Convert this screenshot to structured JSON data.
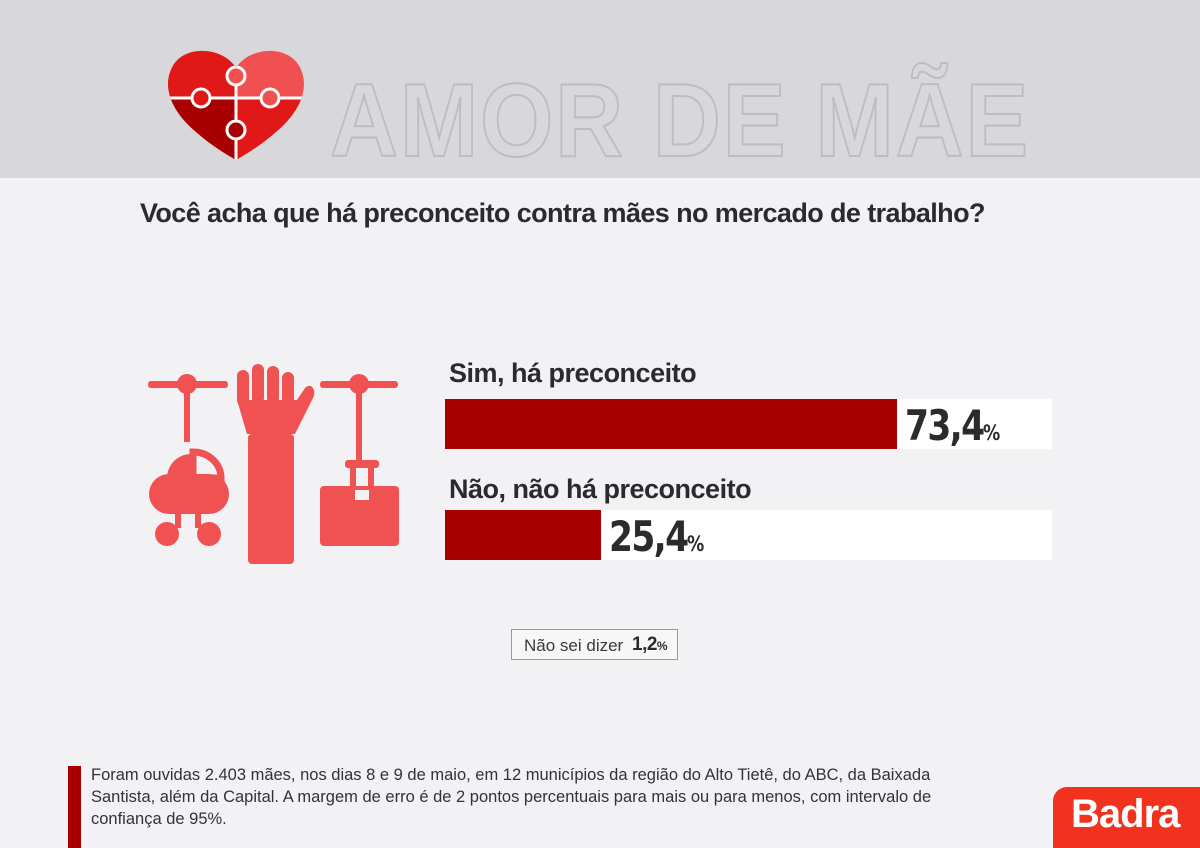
{
  "header": {
    "title": "AMOR DE MÃE"
  },
  "question": "Você acha que há preconceito contra mães no mercado de trabalho?",
  "chart_data": {
    "type": "bar",
    "orientation": "horizontal",
    "categories": [
      "Sim, há preconceito",
      "Não, não há preconceito"
    ],
    "values": [
      73.4,
      25.4
    ],
    "value_labels": [
      "73,4",
      "25,4"
    ],
    "unit": "%",
    "xlim": [
      0,
      100
    ],
    "extra": {
      "label": "Não sei dizer",
      "value": 1.2,
      "value_label": "1,2"
    }
  },
  "footnote": "Foram ouvidas 2.403 mães, nos dias 8 e 9 de maio, em 12 municípios da região do Alto Tietê, do ABC, da Baixada Santista, além da Capital. A margem de erro é de 2 pontos percentuais para mais ou para menos, com intervalo de confiança de 95%.",
  "brand": {
    "name": "Badra",
    "color": "#f0321e"
  },
  "colors": {
    "bar": "#a80000",
    "icon": "#f05252",
    "heart_dark": "#a80000",
    "heart_light": "#f05050",
    "header_bg": "#d8d8da"
  },
  "icons": [
    "heart-puzzle-icon",
    "raised-hand-icon",
    "baby-stroller-icon",
    "briefcase-icon"
  ]
}
